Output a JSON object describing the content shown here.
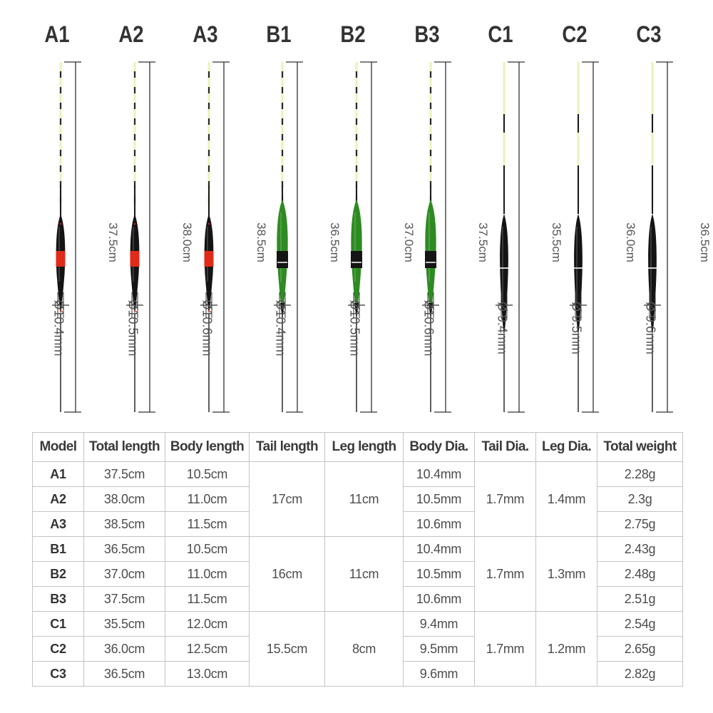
{
  "floats": [
    {
      "model": "A1",
      "total_length": "37.5cm",
      "diameter": "Ø10.4mm",
      "body_color": "#e02a1a",
      "style": "red-band"
    },
    {
      "model": "A2",
      "total_length": "38.0cm",
      "diameter": "Ø10.5mm",
      "body_color": "#e02a1a",
      "style": "red-band"
    },
    {
      "model": "A3",
      "total_length": "38.5cm",
      "diameter": "Ø10.6mm",
      "body_color": "#e02a1a",
      "style": "red-band"
    },
    {
      "model": "B1",
      "total_length": "36.5cm",
      "diameter": "Ø10.4mm",
      "body_color": "#2e8b22",
      "style": "green"
    },
    {
      "model": "B2",
      "total_length": "37.0cm",
      "diameter": "Ø10.5mm",
      "body_color": "#2e8b22",
      "style": "green"
    },
    {
      "model": "B3",
      "total_length": "37.5cm",
      "diameter": "Ø10.6mm",
      "body_color": "#2e8b22",
      "style": "green"
    },
    {
      "model": "C1",
      "total_length": "35.5cm",
      "diameter": "Ø 9.4mm",
      "body_color": "#111111",
      "style": "black"
    },
    {
      "model": "C2",
      "total_length": "36.0cm",
      "diameter": "Ø 9.5mm",
      "body_color": "#111111",
      "style": "black"
    },
    {
      "model": "C3",
      "total_length": "36.5cm",
      "diameter": "Ø 9.6mm",
      "body_color": "#111111",
      "style": "black"
    }
  ],
  "table": {
    "headers": [
      "Model",
      "Total length",
      "Body length",
      "Tail length",
      "Leg length",
      "Body Dia.",
      "Tail Dia.",
      "Leg Dia.",
      "Total weight"
    ],
    "groups": [
      {
        "tail_length": "17cm",
        "leg_length": "11cm",
        "tail_dia": "1.7mm",
        "leg_dia": "1.4mm",
        "rows": [
          {
            "model": "A1",
            "total_length": "37.5cm",
            "body_length": "10.5cm",
            "body_dia": "10.4mm",
            "weight": "2.28g"
          },
          {
            "model": "A2",
            "total_length": "38.0cm",
            "body_length": "11.0cm",
            "body_dia": "10.5mm",
            "weight": "2.3g"
          },
          {
            "model": "A3",
            "total_length": "38.5cm",
            "body_length": "11.5cm",
            "body_dia": "10.6mm",
            "weight": "2.75g"
          }
        ]
      },
      {
        "tail_length": "16cm",
        "leg_length": "11cm",
        "tail_dia": "1.7mm",
        "leg_dia": "1.3mm",
        "rows": [
          {
            "model": "B1",
            "total_length": "36.5cm",
            "body_length": "10.5cm",
            "body_dia": "10.4mm",
            "weight": "2.43g"
          },
          {
            "model": "B2",
            "total_length": "37.0cm",
            "body_length": "11.0cm",
            "body_dia": "10.5mm",
            "weight": "2.48g"
          },
          {
            "model": "B3",
            "total_length": "37.5cm",
            "body_length": "11.5cm",
            "body_dia": "10.6mm",
            "weight": "2.51g"
          }
        ]
      },
      {
        "tail_length": "15.5cm",
        "leg_length": "8cm",
        "tail_dia": "1.7mm",
        "leg_dia": "1.2mm",
        "rows": [
          {
            "model": "C1",
            "total_length": "35.5cm",
            "body_length": "12.0cm",
            "body_dia": "9.4mm",
            "weight": "2.54g"
          },
          {
            "model": "C2",
            "total_length": "36.0cm",
            "body_length": "12.5cm",
            "body_dia": "9.5mm",
            "weight": "2.65g"
          },
          {
            "model": "C3",
            "total_length": "36.5cm",
            "body_length": "13.0cm",
            "body_dia": "9.6mm",
            "weight": "2.82g"
          }
        ]
      }
    ]
  }
}
